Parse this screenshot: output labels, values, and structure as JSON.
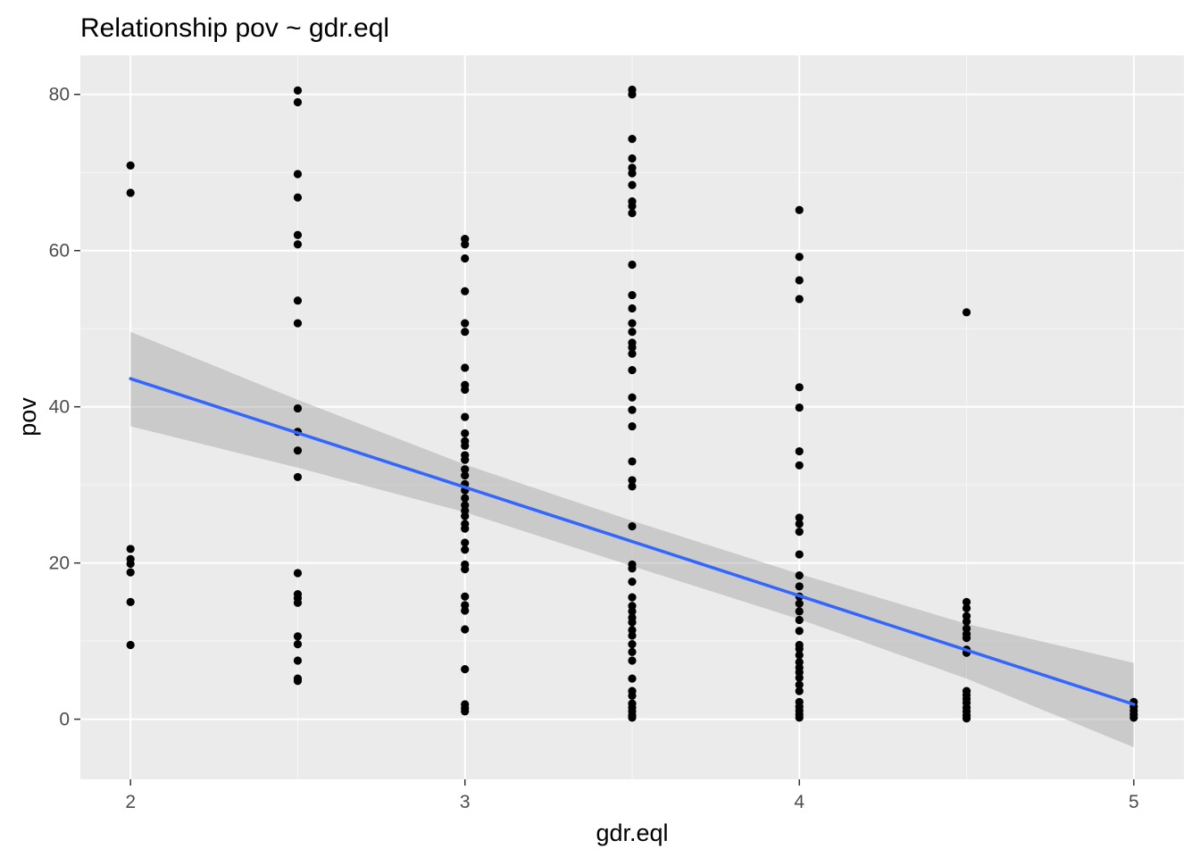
{
  "chart_data": {
    "type": "scatter",
    "title": "Relationship pov ~ gdr.eql",
    "xlabel": "gdr.eql",
    "ylabel": "pov",
    "xlim": [
      1.85,
      5.15
    ],
    "ylim": [
      -7.7,
      85
    ],
    "x_ticks": [
      2,
      3,
      4,
      5
    ],
    "y_ticks": [
      0,
      20,
      40,
      60,
      80
    ],
    "grid": true,
    "colors": {
      "panel_background": "#EBEBEB",
      "grid_major": "#FFFFFF",
      "points": "#000000",
      "fit_line": "#3366FF",
      "confidence_band": "#999999"
    },
    "points": [
      {
        "x": 2,
        "y": 70.9
      },
      {
        "x": 2,
        "y": 67.4
      },
      {
        "x": 2,
        "y": 21.8
      },
      {
        "x": 2,
        "y": 20.5
      },
      {
        "x": 2,
        "y": 19.9
      },
      {
        "x": 2,
        "y": 18.8
      },
      {
        "x": 2,
        "y": 15.0
      },
      {
        "x": 2,
        "y": 9.5
      },
      {
        "x": 2.5,
        "y": 80.5
      },
      {
        "x": 2.5,
        "y": 79.0
      },
      {
        "x": 2.5,
        "y": 69.8
      },
      {
        "x": 2.5,
        "y": 66.8
      },
      {
        "x": 2.5,
        "y": 62.0
      },
      {
        "x": 2.5,
        "y": 60.8
      },
      {
        "x": 2.5,
        "y": 53.6
      },
      {
        "x": 2.5,
        "y": 50.7
      },
      {
        "x": 2.5,
        "y": 39.8
      },
      {
        "x": 2.5,
        "y": 36.8
      },
      {
        "x": 2.5,
        "y": 34.4
      },
      {
        "x": 2.5,
        "y": 31.0
      },
      {
        "x": 2.5,
        "y": 18.7
      },
      {
        "x": 2.5,
        "y": 16.0
      },
      {
        "x": 2.5,
        "y": 15.5
      },
      {
        "x": 2.5,
        "y": 14.9
      },
      {
        "x": 2.5,
        "y": 10.6
      },
      {
        "x": 2.5,
        "y": 9.6
      },
      {
        "x": 2.5,
        "y": 7.5
      },
      {
        "x": 2.5,
        "y": 5.2
      },
      {
        "x": 2.5,
        "y": 4.9
      },
      {
        "x": 3,
        "y": 61.5
      },
      {
        "x": 3,
        "y": 60.8
      },
      {
        "x": 3,
        "y": 59.0
      },
      {
        "x": 3,
        "y": 54.8
      },
      {
        "x": 3,
        "y": 50.7
      },
      {
        "x": 3,
        "y": 49.6
      },
      {
        "x": 3,
        "y": 45.0
      },
      {
        "x": 3,
        "y": 42.8
      },
      {
        "x": 3,
        "y": 42.2
      },
      {
        "x": 3,
        "y": 38.7
      },
      {
        "x": 3,
        "y": 36.6
      },
      {
        "x": 3,
        "y": 35.6
      },
      {
        "x": 3,
        "y": 35.0
      },
      {
        "x": 3,
        "y": 33.8
      },
      {
        "x": 3,
        "y": 33.2
      },
      {
        "x": 3,
        "y": 32.0
      },
      {
        "x": 3,
        "y": 31.2
      },
      {
        "x": 3,
        "y": 30.1
      },
      {
        "x": 3,
        "y": 29.3
      },
      {
        "x": 3,
        "y": 28.3
      },
      {
        "x": 3,
        "y": 27.4
      },
      {
        "x": 3,
        "y": 26.7
      },
      {
        "x": 3,
        "y": 26.0
      },
      {
        "x": 3,
        "y": 25.0
      },
      {
        "x": 3,
        "y": 24.4
      },
      {
        "x": 3,
        "y": 22.6
      },
      {
        "x": 3,
        "y": 21.7
      },
      {
        "x": 3,
        "y": 19.8
      },
      {
        "x": 3,
        "y": 19.2
      },
      {
        "x": 3,
        "y": 15.7
      },
      {
        "x": 3,
        "y": 14.6
      },
      {
        "x": 3,
        "y": 13.9
      },
      {
        "x": 3,
        "y": 11.5
      },
      {
        "x": 3,
        "y": 6.4
      },
      {
        "x": 3,
        "y": 1.9
      },
      {
        "x": 3,
        "y": 1.4
      },
      {
        "x": 3,
        "y": 1.0
      },
      {
        "x": 3.5,
        "y": 80.6
      },
      {
        "x": 3.5,
        "y": 80.0
      },
      {
        "x": 3.5,
        "y": 74.3
      },
      {
        "x": 3.5,
        "y": 71.8
      },
      {
        "x": 3.5,
        "y": 70.6
      },
      {
        "x": 3.5,
        "y": 69.9
      },
      {
        "x": 3.5,
        "y": 68.4
      },
      {
        "x": 3.5,
        "y": 66.3
      },
      {
        "x": 3.5,
        "y": 65.7
      },
      {
        "x": 3.5,
        "y": 64.8
      },
      {
        "x": 3.5,
        "y": 58.2
      },
      {
        "x": 3.5,
        "y": 54.3
      },
      {
        "x": 3.5,
        "y": 52.6
      },
      {
        "x": 3.5,
        "y": 50.7
      },
      {
        "x": 3.5,
        "y": 49.6
      },
      {
        "x": 3.5,
        "y": 48.2
      },
      {
        "x": 3.5,
        "y": 47.6
      },
      {
        "x": 3.5,
        "y": 46.8
      },
      {
        "x": 3.5,
        "y": 44.7
      },
      {
        "x": 3.5,
        "y": 41.2
      },
      {
        "x": 3.5,
        "y": 39.6
      },
      {
        "x": 3.5,
        "y": 37.5
      },
      {
        "x": 3.5,
        "y": 33.0
      },
      {
        "x": 3.5,
        "y": 30.6
      },
      {
        "x": 3.5,
        "y": 29.8
      },
      {
        "x": 3.5,
        "y": 24.7
      },
      {
        "x": 3.5,
        "y": 19.8
      },
      {
        "x": 3.5,
        "y": 19.3
      },
      {
        "x": 3.5,
        "y": 17.6
      },
      {
        "x": 3.5,
        "y": 15.6
      },
      {
        "x": 3.5,
        "y": 14.5
      },
      {
        "x": 3.5,
        "y": 13.8
      },
      {
        "x": 3.5,
        "y": 13.0
      },
      {
        "x": 3.5,
        "y": 12.4
      },
      {
        "x": 3.5,
        "y": 11.4
      },
      {
        "x": 3.5,
        "y": 10.7
      },
      {
        "x": 3.5,
        "y": 9.6
      },
      {
        "x": 3.5,
        "y": 8.6
      },
      {
        "x": 3.5,
        "y": 7.5
      },
      {
        "x": 3.5,
        "y": 5.2
      },
      {
        "x": 3.5,
        "y": 3.6
      },
      {
        "x": 3.5,
        "y": 3.0
      },
      {
        "x": 3.5,
        "y": 2.0
      },
      {
        "x": 3.5,
        "y": 1.5
      },
      {
        "x": 3.5,
        "y": 1.0
      },
      {
        "x": 3.5,
        "y": 0.5
      },
      {
        "x": 3.5,
        "y": 0.2
      },
      {
        "x": 4,
        "y": 65.2
      },
      {
        "x": 4,
        "y": 59.2
      },
      {
        "x": 4,
        "y": 56.2
      },
      {
        "x": 4,
        "y": 53.8
      },
      {
        "x": 4,
        "y": 42.5
      },
      {
        "x": 4,
        "y": 39.9
      },
      {
        "x": 4,
        "y": 34.3
      },
      {
        "x": 4,
        "y": 32.5
      },
      {
        "x": 4,
        "y": 25.8
      },
      {
        "x": 4,
        "y": 25.0
      },
      {
        "x": 4,
        "y": 24.0
      },
      {
        "x": 4,
        "y": 21.1
      },
      {
        "x": 4,
        "y": 18.4
      },
      {
        "x": 4,
        "y": 17.0
      },
      {
        "x": 4,
        "y": 15.7
      },
      {
        "x": 4,
        "y": 14.8
      },
      {
        "x": 4,
        "y": 13.8
      },
      {
        "x": 4,
        "y": 12.7
      },
      {
        "x": 4,
        "y": 11.3
      },
      {
        "x": 4,
        "y": 9.5
      },
      {
        "x": 4,
        "y": 9.0
      },
      {
        "x": 4,
        "y": 8.2
      },
      {
        "x": 4,
        "y": 7.3
      },
      {
        "x": 4,
        "y": 6.6
      },
      {
        "x": 4,
        "y": 6.0
      },
      {
        "x": 4,
        "y": 5.3
      },
      {
        "x": 4,
        "y": 4.4
      },
      {
        "x": 4,
        "y": 3.6
      },
      {
        "x": 4,
        "y": 2.2
      },
      {
        "x": 4,
        "y": 1.6
      },
      {
        "x": 4,
        "y": 1.1
      },
      {
        "x": 4,
        "y": 0.6
      },
      {
        "x": 4,
        "y": 0.2
      },
      {
        "x": 4.5,
        "y": 52.1
      },
      {
        "x": 4.5,
        "y": 15.0
      },
      {
        "x": 4.5,
        "y": 14.2
      },
      {
        "x": 4.5,
        "y": 13.2
      },
      {
        "x": 4.5,
        "y": 12.5
      },
      {
        "x": 4.5,
        "y": 11.6
      },
      {
        "x": 4.5,
        "y": 10.9
      },
      {
        "x": 4.5,
        "y": 10.4
      },
      {
        "x": 4.5,
        "y": 8.9
      },
      {
        "x": 4.5,
        "y": 8.5
      },
      {
        "x": 4.5,
        "y": 3.6
      },
      {
        "x": 4.5,
        "y": 3.1
      },
      {
        "x": 4.5,
        "y": 2.6
      },
      {
        "x": 4.5,
        "y": 2.1
      },
      {
        "x": 4.5,
        "y": 1.5
      },
      {
        "x": 4.5,
        "y": 1.0
      },
      {
        "x": 4.5,
        "y": 0.5
      },
      {
        "x": 4.5,
        "y": 0.1
      },
      {
        "x": 5,
        "y": 2.2
      },
      {
        "x": 5,
        "y": 1.6
      },
      {
        "x": 5,
        "y": 1.1
      },
      {
        "x": 5,
        "y": 0.6
      },
      {
        "x": 5,
        "y": 0.2
      }
    ],
    "fit_line": {
      "method": "lm",
      "x": [
        2,
        5
      ],
      "y": [
        43.6,
        1.9
      ]
    },
    "confidence_band": {
      "x": [
        2,
        2.5,
        3,
        3.5,
        4,
        4.5,
        5
      ],
      "lower": [
        37.5,
        32.2,
        26.5,
        19.6,
        12.8,
        5.2,
        -3.6
      ],
      "upper": [
        49.6,
        40.9,
        32.6,
        25.4,
        18.6,
        12.2,
        7.2
      ]
    }
  }
}
